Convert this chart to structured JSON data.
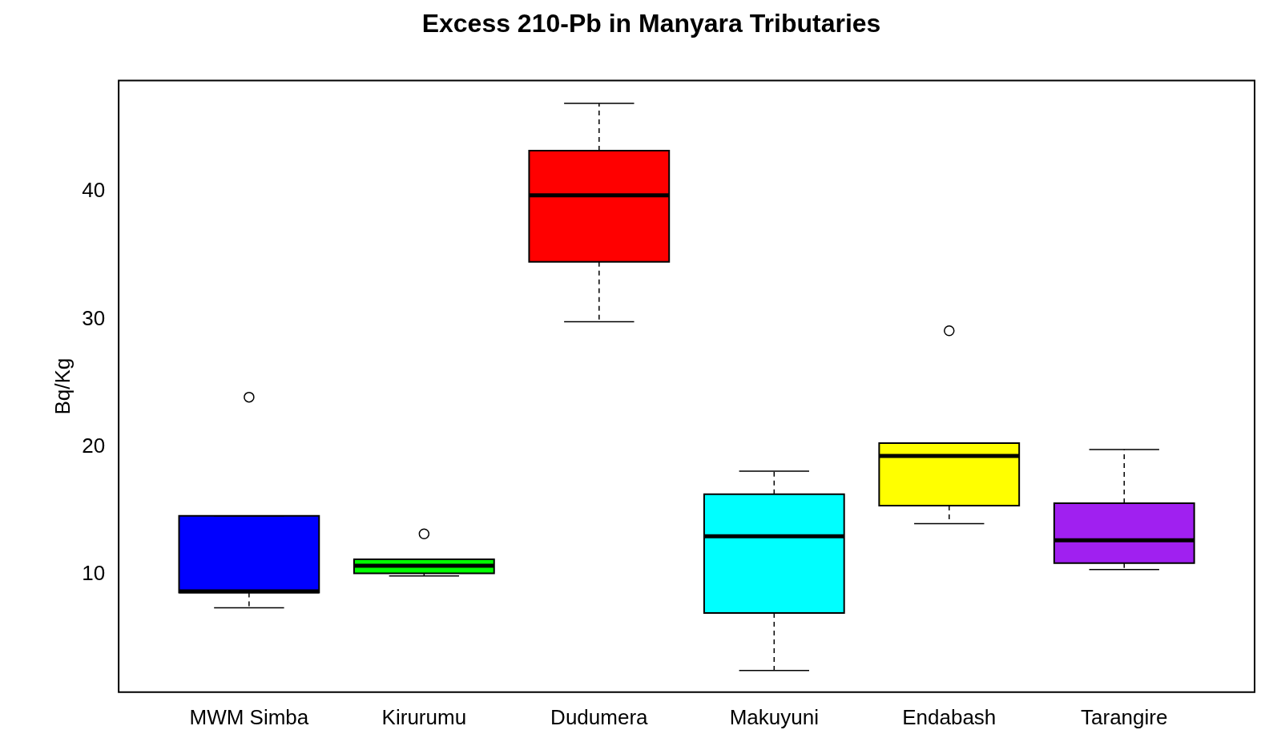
{
  "chart_data": {
    "type": "box",
    "title": "Excess 210-Pb in Manyara Tributaries",
    "ylabel": "Bq/Kg",
    "categories": [
      "MWM Simba",
      "Kirurumu",
      "Dudumera",
      "Makuyuni",
      "Endabash",
      "Tarangire"
    ],
    "colors": [
      "#0000ff",
      "#00ff00",
      "#ff0000",
      "#00ffff",
      "#ffff00",
      "#a020f0"
    ],
    "boxes": [
      {
        "low": 7.4,
        "q1": 8.6,
        "median": 8.7,
        "q3": 14.6,
        "high": 14.6,
        "outliers": [
          23.9
        ]
      },
      {
        "low": 9.9,
        "q1": 10.1,
        "median": 10.7,
        "q3": 11.2,
        "high": 11.2,
        "outliers": [
          13.2
        ]
      },
      {
        "low": 29.8,
        "q1": 34.5,
        "median": 39.7,
        "q3": 43.2,
        "high": 46.9
      },
      {
        "low": 2.5,
        "q1": 7.0,
        "median": 13.0,
        "q3": 16.3,
        "high": 18.1
      },
      {
        "low": 14.0,
        "q1": 15.4,
        "median": 19.3,
        "q3": 20.3,
        "high": 20.3,
        "outliers": [
          29.1
        ]
      },
      {
        "low": 10.4,
        "q1": 10.9,
        "median": 12.7,
        "q3": 15.6,
        "high": 19.8
      }
    ],
    "ylim": [
      0.8,
      48.7
    ],
    "yticks": [
      10,
      20,
      30,
      40
    ]
  }
}
